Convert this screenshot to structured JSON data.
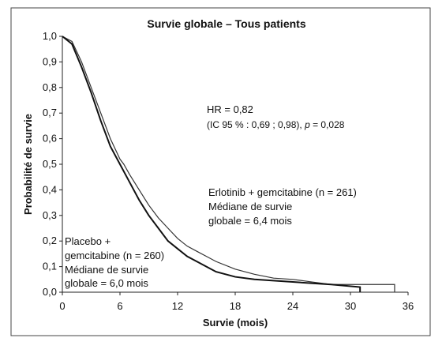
{
  "chart_data": {
    "type": "line",
    "title": "Survie globale – Tous patients",
    "x_label": "Survie (mois)",
    "y_label": "Probabilité de survie",
    "xlim": [
      0,
      36
    ],
    "xticks": [
      0,
      6,
      12,
      18,
      24,
      30,
      36
    ],
    "ylim": [
      0,
      1
    ],
    "yticks": [
      {
        "value": 0,
        "label": "0,0"
      },
      {
        "value": 0.1,
        "label": "0,1"
      },
      {
        "value": 0.2,
        "label": "0,2"
      },
      {
        "value": 0.3,
        "label": "0,3"
      },
      {
        "value": 0.4,
        "label": "0,4"
      },
      {
        "value": 0.5,
        "label": "0,5"
      },
      {
        "value": 0.6,
        "label": "0,6"
      },
      {
        "value": 0.7,
        "label": "0,7"
      },
      {
        "value": 0.8,
        "label": "0,8"
      },
      {
        "value": 0.9,
        "label": "0,9"
      },
      {
        "value": 1,
        "label": "1,0"
      }
    ],
    "series": [
      {
        "color": "#333333",
        "width": 1.2,
        "x": [
          0,
          1,
          2,
          3,
          4,
          5,
          6,
          6.4,
          7,
          8,
          9,
          10,
          11,
          12,
          13,
          14,
          15,
          16,
          18,
          20,
          22,
          24,
          26,
          28,
          34.6,
          34.6
        ],
        "values": [
          1,
          0.98,
          0.9,
          0.8,
          0.7,
          0.6,
          0.52,
          0.5,
          0.46,
          0.4,
          0.34,
          0.29,
          0.25,
          0.21,
          0.18,
          0.16,
          0.14,
          0.12,
          0.09,
          0.07,
          0.055,
          0.05,
          0.04,
          0.03,
          0.03,
          0
        ]
      },
      {
        "color": "#111111",
        "width": 2,
        "x": [
          0,
          1,
          2,
          3,
          4,
          5,
          6,
          7,
          8,
          9,
          10,
          11,
          12,
          13,
          14,
          15,
          16,
          18,
          20,
          24,
          28,
          31,
          31
        ],
        "values": [
          1,
          0.97,
          0.88,
          0.78,
          0.67,
          0.57,
          0.5,
          0.43,
          0.36,
          0.3,
          0.25,
          0.2,
          0.17,
          0.14,
          0.12,
          0.1,
          0.08,
          0.06,
          0.05,
          0.04,
          0.03,
          0.02,
          0
        ]
      }
    ],
    "annotations": {
      "hr": "HR = 0,82",
      "ci": [
        "(IC 95 % : 0,69 ; 0,98), ",
        "p",
        " = 0,028"
      ],
      "erlotinib": [
        "Erlotinib + gemcitabine (n = 261)",
        "Médiane de survie",
        "globale = 6,4 mois"
      ],
      "placebo": [
        "Placebo +",
        "gemcitabine (n = 260)",
        "Médiane de survie",
        "globale = 6,0 mois"
      ]
    }
  }
}
